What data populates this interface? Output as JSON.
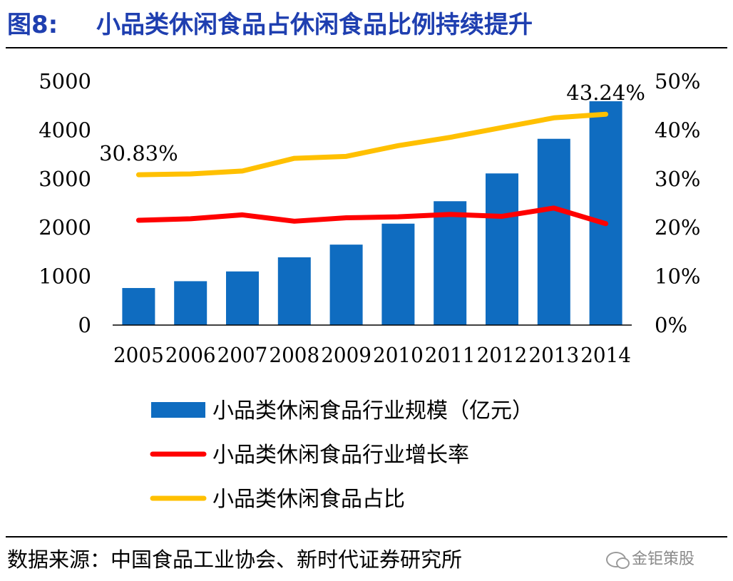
{
  "figure": {
    "number": "图8:",
    "title": "小品类休闲食品占休闲食品比例持续提升"
  },
  "source_note": "数据来源：中国食品工业协会、新时代证券研究所",
  "watermark": "金钜策股",
  "colors": {
    "title": "#1f3fb0",
    "bar": "#0f6cc0",
    "growth_line": "#ff0000",
    "share_line": "#ffc000"
  },
  "chart_data": {
    "type": "bar",
    "categories": [
      "2005",
      "2006",
      "2007",
      "2008",
      "2009",
      "2010",
      "2011",
      "2012",
      "2013",
      "2014"
    ],
    "series": [
      {
        "name": "小品类休闲食品行业规模（亿元）",
        "type": "bar",
        "axis": "left",
        "values": [
          760,
          900,
          1100,
          1390,
          1650,
          2080,
          2540,
          3110,
          3820,
          4590
        ]
      },
      {
        "name": "小品类休闲食品行业增长率",
        "type": "line",
        "axis": "right",
        "values": [
          21.5,
          21.8,
          22.6,
          21.3,
          22.0,
          22.2,
          22.7,
          22.3,
          24.0,
          20.8
        ]
      },
      {
        "name": "小品类休闲食品占比",
        "type": "line",
        "axis": "right",
        "values": [
          30.83,
          31.0,
          31.6,
          34.2,
          34.6,
          36.8,
          38.5,
          40.5,
          42.5,
          43.24
        ]
      }
    ],
    "annotations": [
      {
        "series": 2,
        "index": 0,
        "text": "30.83%"
      },
      {
        "series": 2,
        "index": 9,
        "text": "43.24%"
      }
    ],
    "y_left": {
      "min": 0,
      "max": 5000,
      "ticks": [
        "0",
        "1000",
        "2000",
        "3000",
        "4000",
        "5000"
      ]
    },
    "y_right": {
      "min": 0,
      "max": 50,
      "ticks": [
        "0%",
        "10%",
        "20%",
        "30%",
        "40%",
        "50%"
      ]
    },
    "grid": false,
    "legend_position": "bottom"
  }
}
